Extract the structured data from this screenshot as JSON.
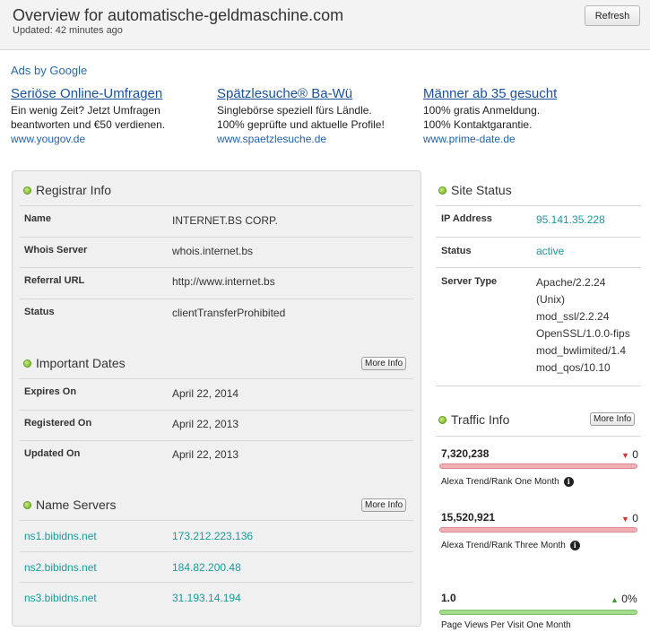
{
  "header": {
    "title": "Overview for automatische-geldmaschine.com",
    "updated": "Updated: 42 minutes ago",
    "refresh_label": "Refresh"
  },
  "ads": {
    "label": "Ads by Google",
    "items": [
      {
        "headline": "Seriöse Online-Umfragen",
        "line1": "Ein wenig Zeit? Jetzt Umfragen",
        "line2": "beantworten und €50 verdienen.",
        "url": "www.yougov.de"
      },
      {
        "headline": "Spätzlesuche® Ba-Wü",
        "line1": "Singlebörse speziell fürs Ländle.",
        "line2": "100% geprüfte und aktuelle Profile!",
        "url": "www.spaetzlesuche.de"
      },
      {
        "headline": "Männer ab 35 gesucht",
        "line1": "100% gratis Anmeldung.",
        "line2": "100% Kontaktgarantie.",
        "url": "www.prime-date.de"
      }
    ]
  },
  "registrar": {
    "title": "Registrar Info",
    "rows": [
      {
        "label": "Name",
        "value": "INTERNET.BS CORP."
      },
      {
        "label": "Whois Server",
        "value": "whois.internet.bs"
      },
      {
        "label": "Referral URL",
        "value": "http://www.internet.bs"
      },
      {
        "label": "Status",
        "value": "clientTransferProhibited"
      }
    ]
  },
  "dates": {
    "title": "Important Dates",
    "more": "More Info",
    "rows": [
      {
        "label": "Expires On",
        "value": "April 22, 2014"
      },
      {
        "label": "Registered On",
        "value": "April 22, 2013"
      },
      {
        "label": "Updated On",
        "value": "April 22, 2013"
      }
    ]
  },
  "nameservers": {
    "title": "Name Servers",
    "more": "More Info",
    "rows": [
      {
        "name": "ns1.bibidns.net",
        "ip": "173.212.223.136"
      },
      {
        "name": "ns2.bibidns.net",
        "ip": "184.82.200.48"
      },
      {
        "name": "ns3.bibidns.net",
        "ip": "31.193.14.194"
      }
    ]
  },
  "site_status": {
    "title": "Site Status",
    "ip_label": "IP Address",
    "ip": "95.141.35.228",
    "status_label": "Status",
    "status": "active",
    "server_label": "Server Type",
    "server_lines": [
      "Apache/2.2.24",
      "(Unix)",
      "mod_ssl/2.2.24",
      "OpenSSL/1.0.0-fips",
      "mod_bwlimited/1.4",
      "mod_qos/10.10"
    ]
  },
  "traffic": {
    "title": "Traffic Info",
    "more": "More Info",
    "items": [
      {
        "value": "7,320,238",
        "change": "0",
        "direction": "down",
        "caption": "Alexa Trend/Rank One Month",
        "bar_color": "red"
      },
      {
        "value": "15,520,921",
        "change": "0",
        "direction": "down",
        "caption": "Alexa Trend/Rank Three Month",
        "bar_color": "red"
      },
      {
        "value": "1.0",
        "change": "0%",
        "direction": "up",
        "caption": "Page Views Per Visit One Month",
        "bar_color": "green"
      }
    ]
  },
  "icons": {
    "bullet": "green-dot-icon",
    "info": "info-icon",
    "trend_down": "triangle-down-icon",
    "trend_up": "triangle-up-icon"
  },
  "colors": {
    "link": "#1a9a9a",
    "ad_headline": "#1a52a0",
    "bullet": "#6cae1f",
    "down": "#cc3333",
    "up": "#3a9a2a"
  }
}
